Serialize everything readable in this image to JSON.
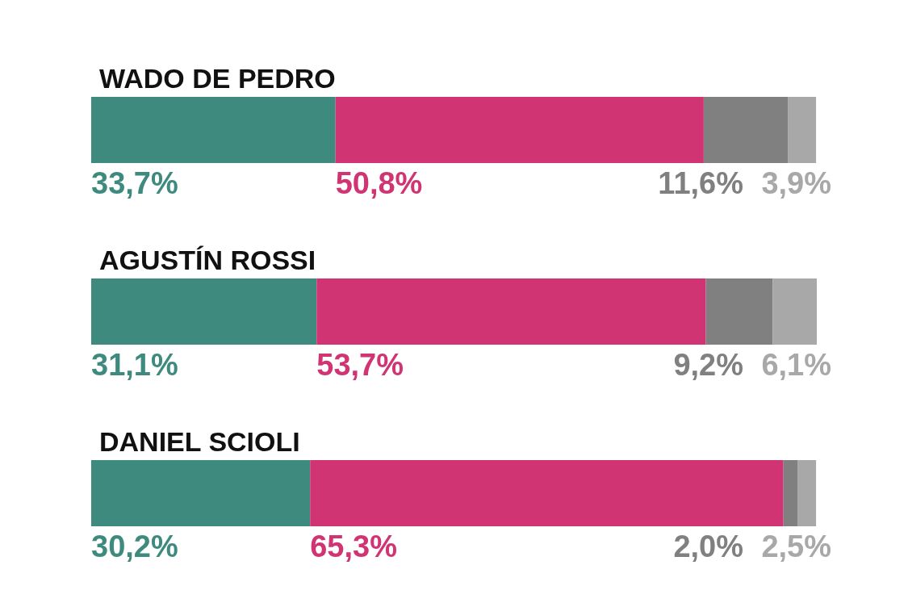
{
  "chart_data": {
    "type": "bar",
    "orientation": "horizontal",
    "stacked": true,
    "tick_labels": "y",
    "categories": [
      "WADO DE PEDRO",
      "AGUSTÍN ROSSI",
      "DANIEL SCIOLI"
    ],
    "series": [
      {
        "color": "#3f8a7e",
        "values": [
          33.7,
          31.1,
          30.2
        ],
        "value_labels": [
          "33,7%",
          "31,1%",
          "30,2%"
        ]
      },
      {
        "color": "#d03473",
        "values": [
          50.8,
          53.7,
          65.3
        ],
        "value_labels": [
          "50,8%",
          "53,7%",
          "65,3%"
        ]
      },
      {
        "color": "#808080",
        "values": [
          11.6,
          9.2,
          2.0
        ],
        "value_labels": [
          "11,6%",
          "9,2%",
          "2,0%"
        ]
      },
      {
        "color": "#a8a8a8",
        "values": [
          3.9,
          6.1,
          2.5
        ],
        "value_labels": [
          "3,9%",
          "6,1%",
          "2,5%"
        ]
      }
    ]
  }
}
